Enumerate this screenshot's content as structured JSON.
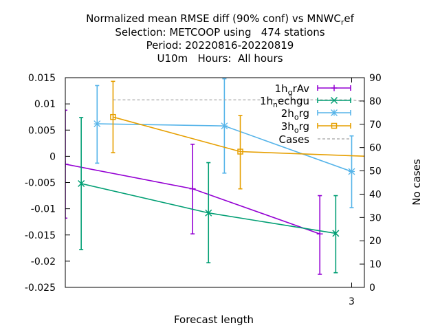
{
  "chart_data": {
    "type": "line",
    "title_lines": [
      "Normalized mean RMSE diff (90% conf) vs MNWC_ref",
      "Selection: METCOOP using   474 stations",
      "Period: 20220816-20220819",
      "U10m   Hours:  All hours"
    ],
    "xlabel": "Forecast length",
    "ylabel_right": "No cases",
    "x_ticks": [
      "3"
    ],
    "xlim": [
      0.75,
      3.1
    ],
    "ylim": [
      -0.025,
      0.015
    ],
    "y_ticks": [
      "-0.025",
      "-0.02",
      "-0.015",
      "-0.01",
      "-0.005",
      "0",
      "0.005",
      "0.01",
      "0.015"
    ],
    "y2lim": [
      0,
      90
    ],
    "y2_ticks": [
      "0",
      "10",
      "20",
      "30",
      "40",
      "50",
      "60",
      "70",
      "80",
      "90"
    ],
    "legend_position": "top-right",
    "grid": false,
    "series": [
      {
        "name": "1h_grAv",
        "color": "#9400d3",
        "marker": "plus",
        "x": [
          0.75,
          1.75,
          2.75
        ],
        "y": [
          -0.0015,
          -0.0062,
          -0.0148
        ],
        "err_low": [
          -0.0118,
          -0.0148,
          -0.0225
        ],
        "err_high": [
          0.0088,
          0.0023,
          -0.0075
        ]
      },
      {
        "name": "1h_nechgu",
        "color": "#009e73",
        "marker": "cross",
        "x": [
          0.875,
          1.875,
          2.875
        ],
        "y": [
          -0.0052,
          -0.0108,
          -0.0147
        ],
        "err_low": [
          -0.0178,
          -0.0203,
          -0.0222
        ],
        "err_high": [
          0.0074,
          -0.0012,
          -0.0075
        ]
      },
      {
        "name": "2h_org",
        "color": "#56b4e9",
        "marker": "star",
        "x": [
          1.0,
          2.0,
          3.0
        ],
        "y": [
          0.0062,
          0.0058,
          -0.0029
        ],
        "err_low": [
          -0.0013,
          -0.0032,
          -0.0098
        ],
        "err_high": [
          0.0135,
          0.0148,
          0.0039
        ]
      },
      {
        "name": "3h_org",
        "color": "#e69f00",
        "marker": "square",
        "x": [
          1.125,
          2.125,
          3.125
        ],
        "y": [
          0.0075,
          0.0009,
          0.0
        ],
        "err_low": [
          0.0007,
          -0.0062,
          -0.006
        ],
        "err_high": [
          0.0143,
          0.0078,
          0.006
        ]
      },
      {
        "name": "Cases",
        "color": "#a0a0a0",
        "dashed": true,
        "axis": "right",
        "x": [
          1.125,
          3.0,
          3.125
        ],
        "y": [
          80.5,
          80.5,
          79.5
        ]
      }
    ]
  }
}
